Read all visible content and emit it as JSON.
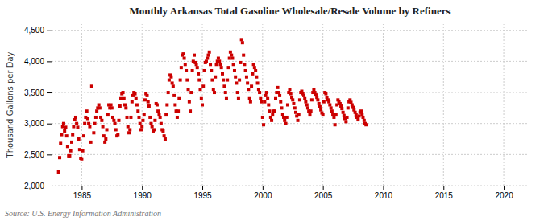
{
  "chart_data": {
    "type": "scatter",
    "title": "Monthly Arkansas Total Gasoline Wholesale/Resale Volume by Refiners",
    "ylabel": "Thousand Gallons per Day",
    "source": "Source: U.S. Energy Information Administration",
    "color": "#cc0000",
    "marker": "square",
    "grid": true,
    "xlim": [
      1982.5,
      2022
    ],
    "ylim": [
      2000,
      4600
    ],
    "xticks": [
      1985,
      1990,
      1995,
      2000,
      2005,
      2010,
      2015,
      2020
    ],
    "yticks": [
      {
        "value": 2000,
        "label": "2,000"
      },
      {
        "value": 2500,
        "label": "2,500"
      },
      {
        "value": 3000,
        "label": "3,000"
      },
      {
        "value": 3500,
        "label": "3,500"
      },
      {
        "value": 4000,
        "label": "4,000"
      },
      {
        "value": 4500,
        "label": "4,500"
      }
    ],
    "x": [
      1983.08,
      1983.17,
      1983.25,
      1983.33,
      1983.42,
      1983.5,
      1983.58,
      1983.67,
      1983.75,
      1983.83,
      1983.92,
      1984.0,
      1984.08,
      1984.17,
      1984.25,
      1984.33,
      1984.42,
      1984.5,
      1984.58,
      1984.67,
      1984.75,
      1984.83,
      1984.92,
      1985.0,
      1985.08,
      1985.17,
      1985.25,
      1985.33,
      1985.42,
      1985.5,
      1985.58,
      1985.67,
      1985.75,
      1985.83,
      1986.0,
      1986.08,
      1986.17,
      1986.25,
      1986.33,
      1986.42,
      1986.5,
      1986.58,
      1986.67,
      1986.75,
      1986.83,
      1986.92,
      1987.0,
      1987.08,
      1987.17,
      1987.25,
      1987.33,
      1987.42,
      1987.5,
      1987.58,
      1987.67,
      1987.75,
      1987.83,
      1987.92,
      1988.0,
      1988.08,
      1988.17,
      1988.25,
      1988.33,
      1988.42,
      1988.5,
      1988.58,
      1988.67,
      1988.75,
      1988.83,
      1988.92,
      1989.0,
      1989.08,
      1989.17,
      1989.25,
      1989.33,
      1989.42,
      1989.5,
      1989.58,
      1989.67,
      1989.75,
      1989.83,
      1989.92,
      1990.0,
      1990.08,
      1990.17,
      1990.25,
      1990.33,
      1990.42,
      1990.5,
      1990.58,
      1990.67,
      1990.75,
      1990.83,
      1990.92,
      1991.0,
      1991.08,
      1991.17,
      1991.25,
      1991.33,
      1991.42,
      1991.5,
      1991.58,
      1991.67,
      1991.75,
      1991.83,
      1991.92,
      1992.0,
      1992.08,
      1992.17,
      1992.25,
      1992.33,
      1992.42,
      1992.5,
      1992.58,
      1992.67,
      1992.75,
      1992.83,
      1992.92,
      1993.0,
      1993.08,
      1993.17,
      1993.25,
      1993.33,
      1993.42,
      1993.5,
      1993.58,
      1993.67,
      1993.75,
      1993.83,
      1993.92,
      1994.0,
      1994.08,
      1994.17,
      1994.25,
      1994.33,
      1994.42,
      1994.5,
      1994.58,
      1994.67,
      1994.75,
      1994.83,
      1994.92,
      1995.0,
      1995.08,
      1995.17,
      1995.25,
      1995.33,
      1995.42,
      1995.5,
      1995.58,
      1995.67,
      1995.75,
      1995.83,
      1995.92,
      1996.0,
      1996.08,
      1996.17,
      1996.25,
      1996.33,
      1996.42,
      1996.5,
      1996.58,
      1996.67,
      1996.75,
      1996.83,
      1996.92,
      1997.0,
      1997.08,
      1997.17,
      1997.25,
      1997.33,
      1997.42,
      1997.5,
      1997.58,
      1997.67,
      1997.75,
      1997.83,
      1997.92,
      1998.0,
      1998.08,
      1998.17,
      1998.25,
      1998.33,
      1998.42,
      1998.5,
      1998.58,
      1998.67,
      1998.75,
      1998.83,
      1998.92,
      1999.0,
      1999.08,
      1999.17,
      1999.25,
      1999.33,
      1999.42,
      1999.5,
      1999.58,
      1999.67,
      1999.75,
      1999.83,
      1999.92,
      2000.0,
      2000.08,
      2000.17,
      2000.25,
      2000.33,
      2000.42,
      2000.5,
      2000.58,
      2000.67,
      2000.75,
      2000.83,
      2000.92,
      2001.0,
      2001.08,
      2001.17,
      2001.25,
      2001.33,
      2001.42,
      2001.5,
      2001.58,
      2001.67,
      2001.75,
      2001.83,
      2001.92,
      2002.0,
      2002.08,
      2002.17,
      2002.25,
      2002.33,
      2002.42,
      2002.5,
      2002.58,
      2002.67,
      2002.75,
      2002.83,
      2002.92,
      2003.0,
      2003.08,
      2003.17,
      2003.25,
      2003.33,
      2003.42,
      2003.5,
      2003.58,
      2003.67,
      2003.75,
      2003.83,
      2003.92,
      2004.0,
      2004.08,
      2004.17,
      2004.25,
      2004.33,
      2004.42,
      2004.5,
      2004.58,
      2004.67,
      2004.75,
      2004.83,
      2004.92,
      2005.0,
      2005.08,
      2005.17,
      2005.25,
      2005.33,
      2005.42,
      2005.5,
      2005.58,
      2005.67,
      2005.75,
      2005.83,
      2005.92,
      2006.0,
      2006.08,
      2006.17,
      2006.25,
      2006.33,
      2006.42,
      2006.5,
      2006.58,
      2006.67,
      2006.75,
      2006.83,
      2006.92,
      2007.0,
      2007.08,
      2007.17,
      2007.25,
      2007.33,
      2007.42,
      2007.5,
      2007.58,
      2007.67,
      2007.75,
      2007.83,
      2007.92,
      2008.0,
      2008.08,
      2008.17,
      2008.25,
      2008.33,
      2008.42,
      2008.5,
      2008.58
    ],
    "values": [
      2220,
      2450,
      2680,
      2820,
      2950,
      3000,
      2880,
      2940,
      2800,
      2630,
      2480,
      2480,
      2560,
      2700,
      2820,
      2950,
      3060,
      3100,
      3000,
      2940,
      2750,
      2580,
      2440,
      2430,
      2560,
      2800,
      3000,
      3100,
      3200,
      3080,
      3000,
      2950,
      2700,
      3600,
      2850,
      3000,
      3100,
      3200,
      3250,
      3300,
      3250,
      3100,
      3050,
      2950,
      2800,
      2700,
      2750,
      2900,
      3150,
      3300,
      3250,
      3300,
      3250,
      3100,
      3050,
      3000,
      2900,
      2800,
      2820,
      3050,
      3280,
      3400,
      3480,
      3500,
      3400,
      3300,
      3250,
      3100,
      2950,
      2850,
      2900,
      3100,
      3350,
      3450,
      3500,
      3480,
      3400,
      3300,
      3200,
      3100,
      3000,
      2900,
      2950,
      3050,
      3150,
      3380,
      3480,
      3450,
      3350,
      3280,
      3100,
      3000,
      2950,
      2880,
      2900,
      3050,
      3320,
      3300,
      3200,
      3150,
      3100,
      3000,
      2900,
      2880,
      2800,
      2750,
      3150,
      3300,
      3500,
      3700,
      3780,
      3750,
      3650,
      3600,
      3450,
      3300,
      3200,
      3100,
      3200,
      3400,
      3700,
      3900,
      4100,
      4120,
      4050,
      3950,
      3850,
      3700,
      3550,
      3350,
      3200,
      3500,
      3850,
      4000,
      4100,
      3980,
      3950,
      3900,
      3800,
      3700,
      3550,
      3400,
      3300,
      3600,
      3850,
      3980,
      4000,
      4050,
      4100,
      4150,
      3950,
      3850,
      3700,
      3550,
      3500,
      3750,
      3950,
      4000,
      4050,
      4000,
      3950,
      3900,
      3800,
      3700,
      3600,
      3500,
      3400,
      3700,
      3900,
      4050,
      4150,
      4100,
      4050,
      3950,
      3850,
      3750,
      3650,
      3500,
      3400,
      3700,
      3980,
      4350,
      4300,
      4100,
      3950,
      3850,
      3750,
      3650,
      3550,
      3400,
      3350,
      3600,
      3800,
      3950,
      3900,
      3850,
      3750,
      3650,
      3550,
      3500,
      3400,
      3350,
      3100,
      2980,
      3350,
      3450,
      3500,
      3400,
      3300,
      3200,
      3100,
      3050,
      3150,
      3200,
      3200,
      3400,
      3500,
      3580,
      3500,
      3450,
      3350,
      3250,
      3150,
      3100,
      3050,
      3000,
      3100,
      3300,
      3500,
      3550,
      3480,
      3420,
      3380,
      3320,
      3250,
      3180,
      3120,
      3050,
      3150,
      3380,
      3500,
      3520,
      3480,
      3450,
      3400,
      3350,
      3300,
      3250,
      3200,
      3150,
      3200,
      3380,
      3500,
      3550,
      3500,
      3460,
      3420,
      3380,
      3320,
      3270,
      3220,
      3170,
      3150,
      3350,
      3500,
      3480,
      3420,
      3380,
      3350,
      3300,
      3250,
      3200,
      3150,
      3100,
      2980,
      3150,
      3300,
      3380,
      3350,
      3320,
      3280,
      3240,
      3180,
      3130,
      3080,
      3030,
      3100,
      3250,
      3350,
      3380,
      3340,
      3300,
      3260,
      3220,
      3180,
      3140,
      3100,
      3060,
      3120,
      3180,
      3200,
      3150,
      3100,
      3050,
      3000,
      2980
    ]
  }
}
